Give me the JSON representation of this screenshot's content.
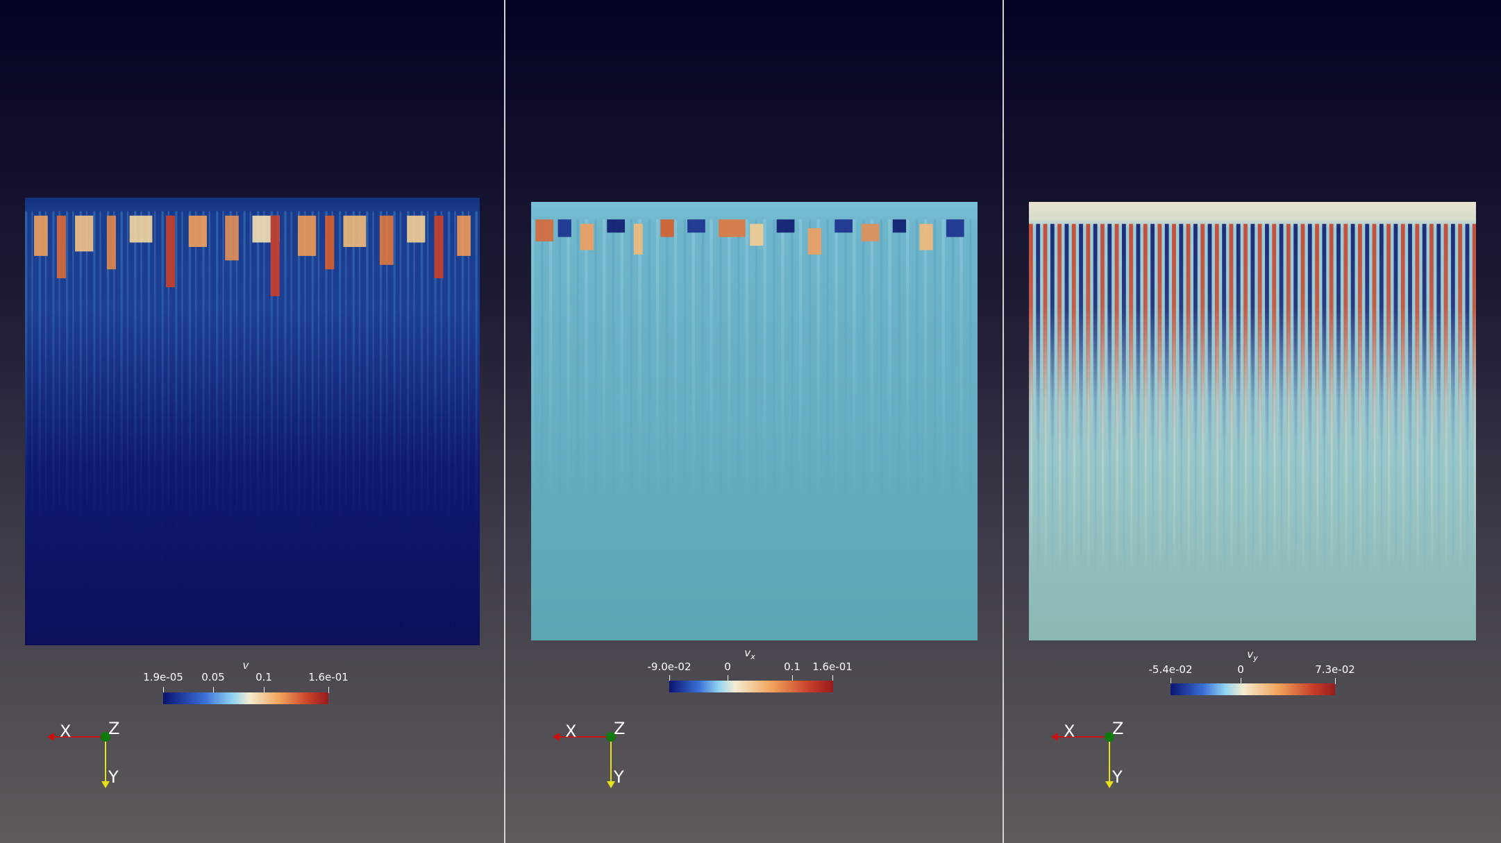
{
  "views": [
    {
      "colorbar": {
        "title": "v",
        "subscript": "",
        "ticks": [
          "1.9e-05",
          "0.05",
          "0.1",
          "1.6e-01"
        ]
      },
      "axes": {
        "x": "X",
        "y": "Y",
        "z": "Z"
      }
    },
    {
      "colorbar": {
        "title": "v",
        "subscript": "x",
        "ticks": [
          "-9.0e-02",
          "0",
          "0.1",
          "1.6e-01"
        ]
      },
      "axes": {
        "x": "X",
        "y": "Y",
        "z": "Z"
      }
    },
    {
      "colorbar": {
        "title": "v",
        "subscript": "y",
        "ticks": [
          "-5.4e-02",
          "0",
          "7.3e-02"
        ]
      },
      "axes": {
        "x": "X",
        "y": "Y",
        "z": "Z"
      }
    }
  ],
  "colors": {
    "background_top": "#020324",
    "background_bottom": "#5d5a5a",
    "colormap": [
      "#0a1370",
      "#3a6fd6",
      "#8fd3f2",
      "#f3ecd2",
      "#f2a55c",
      "#c8402a",
      "#981b1e"
    ],
    "axis_x": "#cc1010",
    "axis_y": "#e8e01a",
    "axis_origin": "#0e7a0e"
  }
}
